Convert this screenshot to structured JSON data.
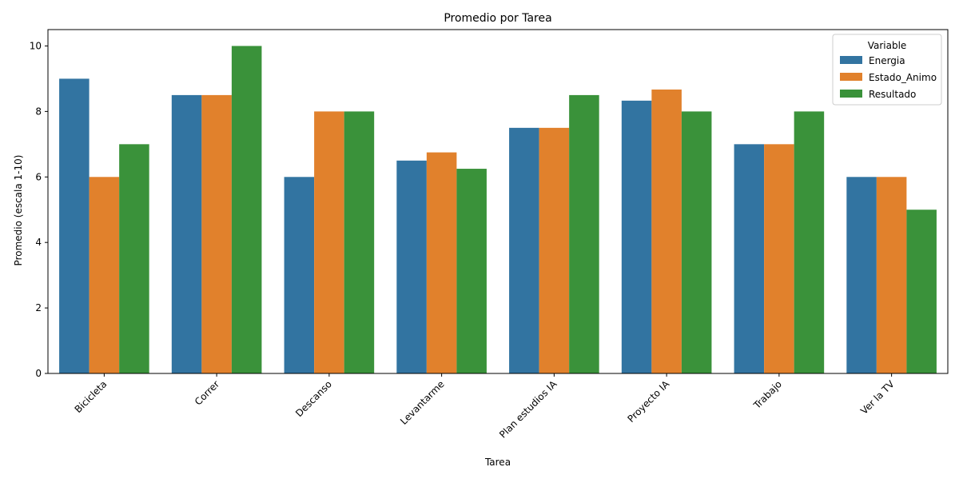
{
  "chart_data": {
    "type": "bar",
    "title": "Promedio por Tarea",
    "xlabel": "Tarea",
    "ylabel": "Promedio (escala 1-10)",
    "categories": [
      "Bicicleta",
      "Correr",
      "Descanso",
      "Levantarme",
      "Plan estudios IA",
      "Proyecto IA",
      "Trabajo",
      "Ver la TV"
    ],
    "series": [
      {
        "name": "Energia",
        "color": "#3274a1",
        "values": [
          9,
          8.5,
          6,
          6.5,
          7.5,
          8.33,
          7,
          6
        ]
      },
      {
        "name": "Estado_Animo",
        "color": "#e1812c",
        "values": [
          6,
          8.5,
          8,
          6.75,
          7.5,
          8.67,
          7,
          6
        ]
      },
      {
        "name": "Resultado",
        "color": "#3a923a",
        "values": [
          7,
          10,
          8,
          6.25,
          8.5,
          8,
          8,
          5
        ]
      }
    ],
    "ylim": [
      0,
      10.5
    ],
    "yticks": [
      0,
      2,
      4,
      6,
      8,
      10
    ],
    "legend": {
      "title": "Variable",
      "placement": "top-right"
    },
    "grid": false
  }
}
